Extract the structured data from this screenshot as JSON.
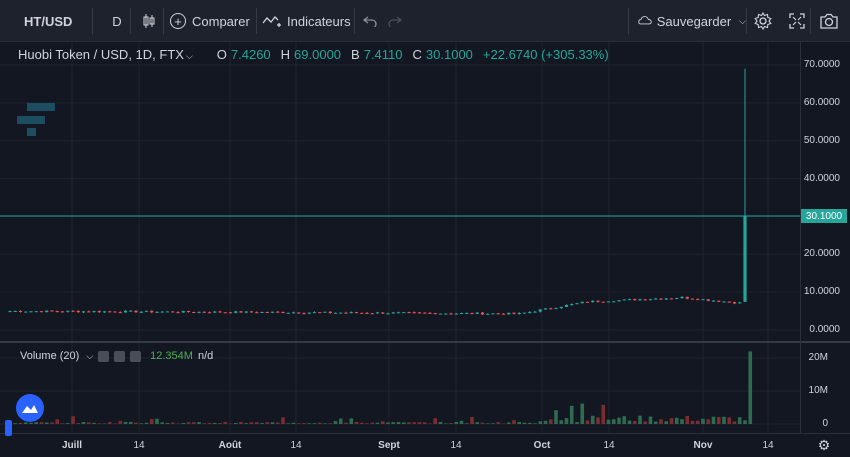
{
  "toolbar": {
    "symbol": "HT/USD",
    "interval": "D",
    "compare_label": "Comparer",
    "indicators_label": "Indicateurs",
    "save_label": "Sauvegarder"
  },
  "legend": {
    "title": "Huobi Token / USD, 1D, FTX",
    "open_key": "O",
    "open": "7.4260",
    "high_key": "H",
    "high": "69.0000",
    "low_key": "B",
    "low": "7.4110",
    "close_key": "C",
    "close": "30.1000",
    "change": "+22.6740 (+305.33%)"
  },
  "price_scale": [
    "70.0000",
    "60.0000",
    "50.0000",
    "40.0000",
    "30.0000",
    "20.0000",
    "10.0000",
    "0.0000"
  ],
  "last_price_tag": "30.1000",
  "volume": {
    "label": "Volume (20)",
    "value": "12.354M",
    "value2": "n/d",
    "scale": [
      "20M",
      "10M",
      "0"
    ]
  },
  "time_axis": [
    {
      "label": "Juill",
      "bold": true
    },
    {
      "label": "14",
      "bold": false
    },
    {
      "label": "Août",
      "bold": true
    },
    {
      "label": "14",
      "bold": false
    },
    {
      "label": "Sept",
      "bold": true
    },
    {
      "label": "14",
      "bold": false
    },
    {
      "label": "Oct",
      "bold": true
    },
    {
      "label": "14",
      "bold": false
    },
    {
      "label": "Nov",
      "bold": true
    },
    {
      "label": "14",
      "bold": false
    }
  ],
  "colors": {
    "up": "#26a69a",
    "down": "#ef5350",
    "background": "#131722",
    "vol_up": "#2e6b4f",
    "vol_down": "#7a2e30"
  },
  "chart_data": {
    "type": "candlestick",
    "ylim": [
      0,
      70
    ],
    "volume_ylim": [
      0,
      20
    ],
    "price_segments": [
      {
        "from_day": 0,
        "to_day": 97,
        "start": 5.0,
        "mid": 4.7,
        "end": 4.3
      },
      {
        "from_day": 97,
        "to_day": 110,
        "start": 4.3,
        "end": 7.5
      },
      {
        "from_day": 110,
        "to_day": 128,
        "start": 7.5,
        "end": 8.6
      },
      {
        "from_day": 128,
        "to_day": 140,
        "start": 8.6,
        "end": 7.0
      }
    ],
    "last_candle": {
      "open": 7.426,
      "high": 69.0,
      "low": 7.411,
      "close": 30.1
    },
    "volume_highlights": [
      {
        "day": 104,
        "value": 4.2
      },
      {
        "day": 107,
        "value": 5.5
      },
      {
        "day": 109,
        "value": 6.2
      },
      {
        "day": 112,
        "value": 2.0
      },
      {
        "day": 113,
        "value": 5.8
      },
      {
        "day": 141,
        "value": 22.0
      },
      {
        "day": 142,
        "value": 12.35
      }
    ]
  }
}
